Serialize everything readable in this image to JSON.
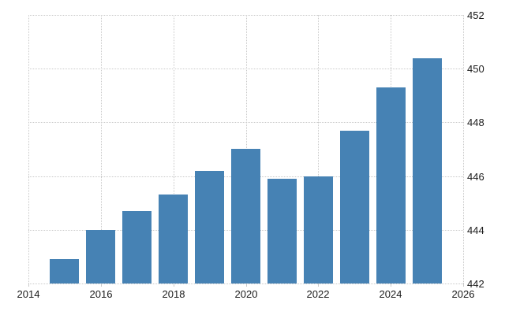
{
  "chart_data": {
    "type": "bar",
    "title": "",
    "xlabel": "",
    "ylabel": "",
    "categories": [
      "2015",
      "2016",
      "2017",
      "2018",
      "2019",
      "2020",
      "2021",
      "2022",
      "2023",
      "2024",
      "2025"
    ],
    "values": [
      442.9,
      444.0,
      444.7,
      445.3,
      446.2,
      447.0,
      445.9,
      446.0,
      447.7,
      449.3,
      450.4
    ],
    "xlim": [
      2014,
      2026
    ],
    "ylim": [
      442,
      452
    ],
    "x_ticks": [
      2014,
      2016,
      2018,
      2020,
      2022,
      2024,
      2026
    ],
    "x_tick_labels": [
      "2014",
      "2016",
      "2018",
      "2020",
      "2022",
      "2024",
      "2026"
    ],
    "y_ticks": [
      442,
      444,
      446,
      448,
      450,
      452
    ],
    "y_tick_labels": [
      "442",
      "444",
      "446",
      "448",
      "450",
      "452"
    ],
    "y_axis_side": "right",
    "grid": "dotted",
    "legend": "none",
    "colors": {
      "bar": "#4682b4",
      "grid": "#c9c9c9",
      "tick_label": "#1a1a1a",
      "background": "#ffffff"
    }
  }
}
